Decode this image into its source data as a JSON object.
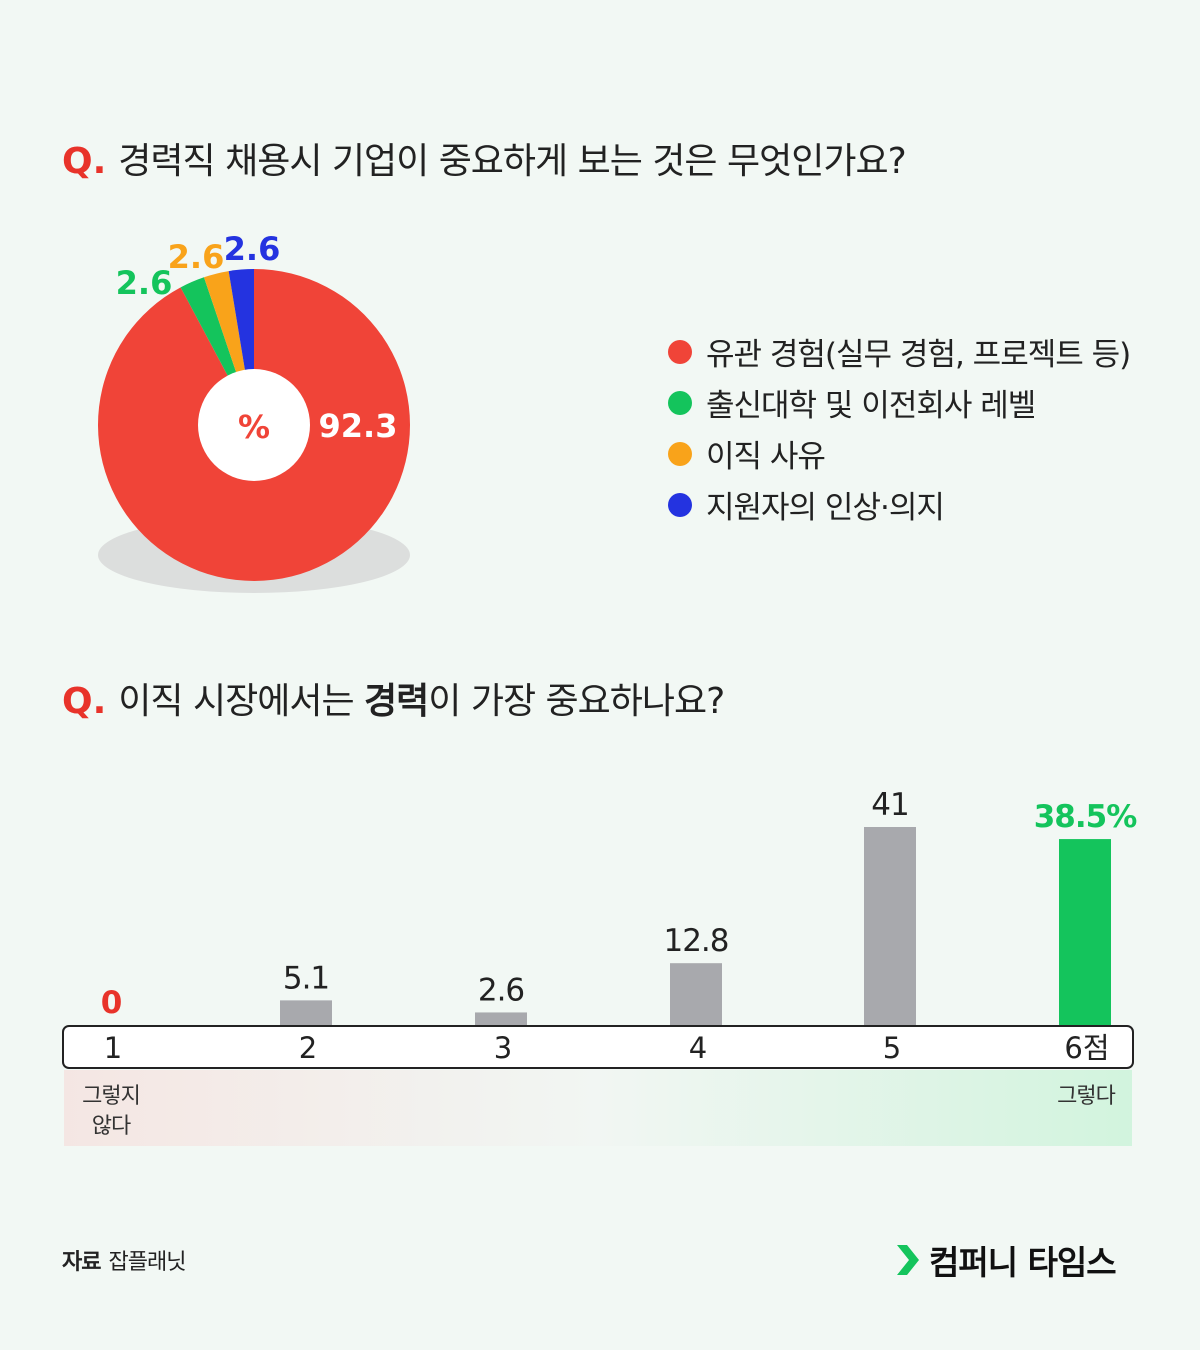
{
  "q1": {
    "mark": "Q.",
    "text": "경력직 채용시 기업이 중요하게 보는 것은 무엇인가요?"
  },
  "q2": {
    "mark": "Q.",
    "text_before": "이직 시장에서는 ",
    "text_bold": "경력",
    "text_after": "이 가장 중요하나요?"
  },
  "colors": {
    "red": "#f04438",
    "green": "#14c45c",
    "orange": "#f9a31a",
    "blue": "#2433e0",
    "gray": "#a8a9ad",
    "highlight_green": "#14c45c",
    "zero_red": "#e8332a"
  },
  "chart_data": [
    {
      "type": "pie",
      "style": "donut",
      "center_label": "%",
      "slices": [
        {
          "label": "유관 경험(실무 경험, 프로젝트 등)",
          "value": 92.3,
          "value_label": "92.3",
          "color": "#f04438"
        },
        {
          "label": "출신대학 및 이전회사 레벨",
          "value": 2.6,
          "value_label": "2.6",
          "color": "#14c45c"
        },
        {
          "label": "이직 사유",
          "value": 2.6,
          "value_label": "2.6",
          "color": "#f9a31a"
        },
        {
          "label": "지원자의 인상·의지",
          "value": 2.6,
          "value_label": "2.6",
          "color": "#2433e0"
        }
      ],
      "legend_position": "right"
    },
    {
      "type": "bar",
      "categories": [
        "1",
        "2",
        "3",
        "4",
        "5",
        "6점"
      ],
      "values": [
        0,
        5.1,
        2.6,
        12.8,
        41,
        38.5
      ],
      "value_labels": [
        "0",
        "5.1",
        "2.6",
        "12.8",
        "41",
        "38.5%"
      ],
      "ylim": [
        0,
        41
      ],
      "axis_end_labels": {
        "left": "그렇지\n않다",
        "right": "그렇다"
      }
    }
  ],
  "source": {
    "label": "자료",
    "value": "잡플래닛"
  },
  "brand": {
    "name": "컴퍼니 타임스",
    "icon": "chevron-right-icon"
  }
}
